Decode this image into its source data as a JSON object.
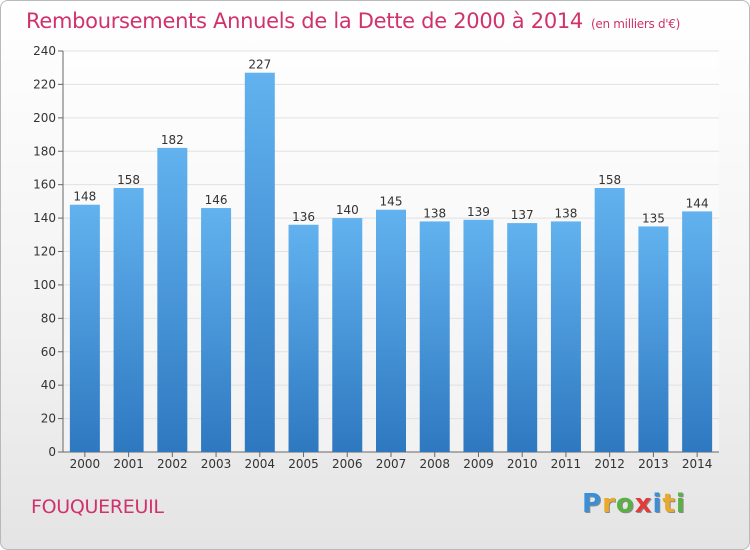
{
  "header": {
    "title": "Remboursements Annuels de la Dette de 2000 à 2014",
    "unit": "(en milliers d'€)"
  },
  "footer": {
    "commune": "FOUQUEREUIL",
    "logo_letters": [
      {
        "ch": "P",
        "color": "#3b8fd6"
      },
      {
        "ch": "r",
        "color": "#e8a92c"
      },
      {
        "ch": "o",
        "color": "#5bb045"
      },
      {
        "ch": "x",
        "color": "#e23b3b"
      },
      {
        "ch": "i",
        "color": "#3b8fd6"
      },
      {
        "ch": "t",
        "color": "#e8a92c"
      },
      {
        "ch": "i",
        "color": "#5bb045"
      }
    ]
  },
  "chart_data": {
    "type": "bar",
    "title": "Remboursements Annuels de la Dette de 2000 à 2014",
    "xlabel": "",
    "ylabel": "",
    "categories": [
      "2000",
      "2001",
      "2002",
      "2003",
      "2004",
      "2005",
      "2006",
      "2007",
      "2008",
      "2009",
      "2010",
      "2011",
      "2012",
      "2013",
      "2014"
    ],
    "values": [
      148,
      158,
      182,
      146,
      227,
      136,
      140,
      145,
      138,
      139,
      137,
      138,
      158,
      135,
      144
    ],
    "ylim": [
      0,
      240
    ],
    "yticks": [
      0,
      20,
      40,
      60,
      80,
      100,
      120,
      140,
      160,
      180,
      200,
      220,
      240
    ],
    "grid": true,
    "colors": {
      "bar_top": "#62b2ef",
      "bar_bottom": "#2e78c0",
      "grid": "#e1e1e1",
      "axis": "#666666",
      "label": "#333333"
    }
  }
}
